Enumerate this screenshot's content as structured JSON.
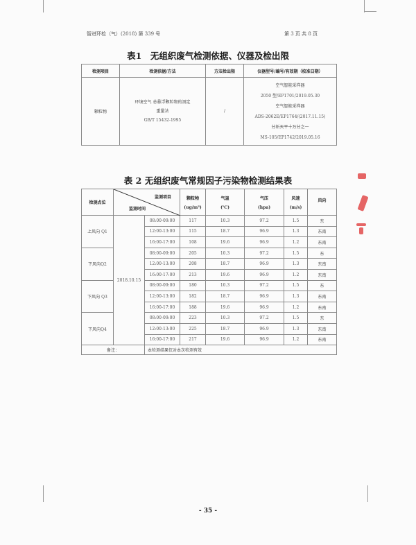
{
  "header": {
    "doc_no": "智进环检（气）(2018) 第 339 号",
    "page_info": "第 3 页 共 8 页"
  },
  "table1": {
    "title": "表1　无组织废气检测依据、仪器及检出限",
    "headers": [
      "检测项目",
      "检测依据/方法",
      "方法检出限",
      "仪器型号/编号/有效期（校准日期）"
    ],
    "item": "颗粒物",
    "method": [
      "环境空气 总悬浮颗粒物的测定",
      "重量法",
      "GB/T 15432-1995"
    ],
    "limit": "/",
    "instruments": [
      "空气智能采样器",
      "2050 型/EP1701/2019.05.30",
      "空气智能采样器",
      "ADS-2062E/EP1764/(2017.11.15)",
      "分析天平十万分之一",
      "MS-105/EP1742/2019.05.16"
    ]
  },
  "table2": {
    "title": "表 2  无组织废气常规因子污染物检测结果表",
    "h_point": "检测点位",
    "h_item": "监测项目",
    "h_time": "监测时间",
    "h_cols": [
      [
        "颗粒物",
        "(ug/m³)"
      ],
      [
        "气温",
        "(℃)"
      ],
      [
        "气压",
        "(hpa)"
      ],
      [
        "风速",
        "(m/s)"
      ],
      [
        "风向",
        ""
      ]
    ],
    "date": "2018.10.15",
    "groups": [
      {
        "point": "上风向 Q1",
        "rows": [
          [
            "08:00-09:00",
            "117",
            "10.3",
            "97.2",
            "1.5",
            "东"
          ],
          [
            "12:00-13:00",
            "115",
            "18.7",
            "96.9",
            "1.3",
            "东南"
          ],
          [
            "16:00-17:00",
            "108",
            "19.6",
            "96.9",
            "1.2",
            "东南"
          ]
        ]
      },
      {
        "point": "下风向Q2",
        "rows": [
          [
            "08:00-09:00",
            "205",
            "10.3",
            "97.2",
            "1.5",
            "东"
          ],
          [
            "12:00-13:00",
            "208",
            "18.7",
            "96.9",
            "1.3",
            "东南"
          ],
          [
            "16:00-17:00",
            "213",
            "19.6",
            "96.9",
            "1.2",
            "东南"
          ]
        ]
      },
      {
        "point": "下风向 Q3",
        "rows": [
          [
            "08:00-09:00",
            "180",
            "10.3",
            "97.2",
            "1.5",
            "东"
          ],
          [
            "12:00-13:00",
            "182",
            "18.7",
            "96.9",
            "1.3",
            "东南"
          ],
          [
            "16:00-17:00",
            "188",
            "19.6",
            "96.9",
            "1.2",
            "东南"
          ]
        ]
      },
      {
        "point": "下风向Q4",
        "rows": [
          [
            "08:00-09:00",
            "223",
            "10.3",
            "97.2",
            "1.5",
            "东"
          ],
          [
            "12:00-13:00",
            "225",
            "18.7",
            "96.9",
            "1.3",
            "东南"
          ],
          [
            "16:00-17:00",
            "217",
            "19.6",
            "96.9",
            "1.2",
            "东南"
          ]
        ]
      }
    ],
    "remark_label": "备注：",
    "remark": "本检测结果仅对本次检测有效"
  },
  "footer": {
    "page_number": "- 35 -"
  }
}
